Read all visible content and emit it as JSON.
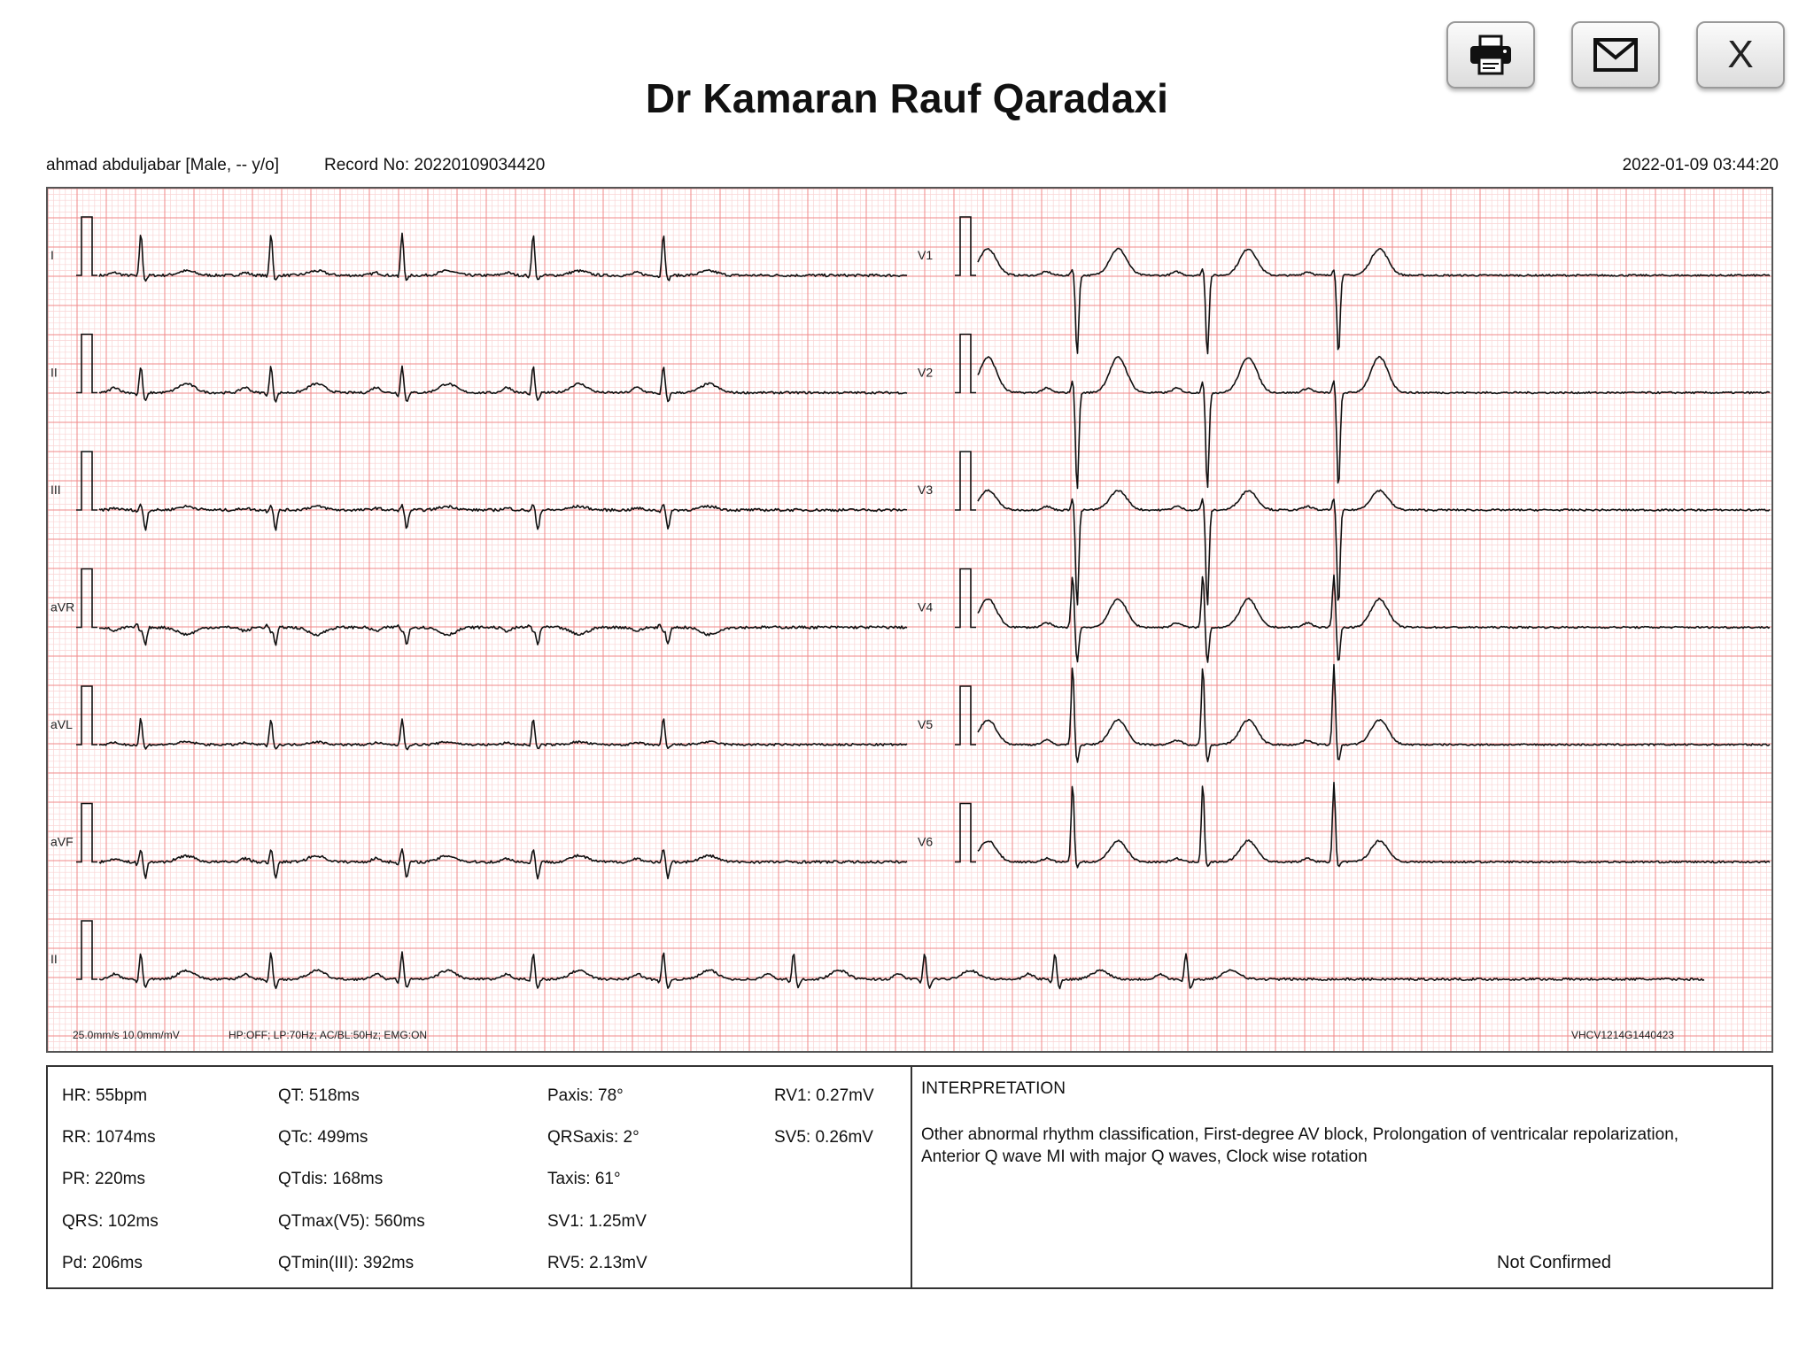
{
  "header": {
    "title": "Dr Kamaran Rauf Qaradaxi",
    "buttons": {
      "print_icon": "printer-icon",
      "mail_icon": "envelope-icon",
      "close_label": "X"
    }
  },
  "patient": {
    "info": "ahmad abduljabar [Male, -- y/o]",
    "record": "Record No: 20220109034420",
    "datetime": "2022-01-09 03:44:20"
  },
  "ecg": {
    "leads_left": [
      "I",
      "II",
      "III",
      "aVR",
      "aVL",
      "aVF"
    ],
    "leads_right": [
      "V1",
      "V2",
      "V3",
      "V4",
      "V5",
      "V6"
    ],
    "rhythm_lead": "II",
    "settings": "25.0mm/s  10.0mm/mV",
    "filters": "HP:OFF; LP:70Hz; AC/BL:50Hz; EMG:ON",
    "device_id": "VHCV1214G1440423",
    "colors": {
      "grid_major": "#f08a8a",
      "grid_minor": "#fad4d4",
      "trace": "#111111"
    }
  },
  "measurements": {
    "col1": [
      "HR: 55bpm",
      "RR: 1074ms",
      "PR: 220ms",
      "QRS: 102ms",
      "Pd: 206ms"
    ],
    "col2": [
      "QT: 518ms",
      "QTc: 499ms",
      "QTdis: 168ms",
      "QTmax(V5): 560ms",
      "QTmin(III): 392ms"
    ],
    "col3": [
      "Paxis: 78°",
      "QRSaxis: 2°",
      "Taxis: 61°",
      "SV1: 1.25mV",
      "RV5: 2.13mV"
    ],
    "col4": [
      "RV1: 0.27mV",
      "SV5: 0.26mV"
    ]
  },
  "interpretation": {
    "title": "INTERPRETATION",
    "text": "Other abnormal rhythm classification, First-degree AV block, Prolongation of ventricalar repolarization, Anterior Q wave MI with major Q waves, Clock wise rotation",
    "status": "Not Confirmed"
  }
}
